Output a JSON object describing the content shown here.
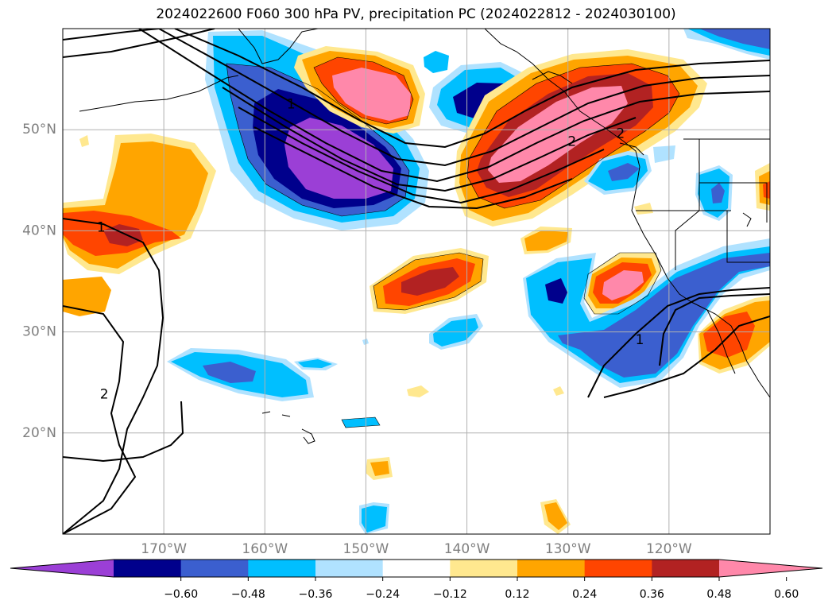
{
  "title": "2024022600 F060 300 hPa PV, precipitation PC (2024022812 - 2024030100)",
  "map": {
    "projection": "plate-carree",
    "lon_range": [
      -180,
      -110
    ],
    "lat_range": [
      10,
      60
    ],
    "gridlines": true,
    "lon_ticks": [
      {
        "lon": -170,
        "label": "170°W"
      },
      {
        "lon": -160,
        "label": "160°W"
      },
      {
        "lon": -150,
        "label": "150°W"
      },
      {
        "lon": -140,
        "label": "140°W"
      },
      {
        "lon": -130,
        "label": "130°W"
      },
      {
        "lon": -120,
        "label": "120°W"
      }
    ],
    "lat_ticks": [
      {
        "lat": 50,
        "label": "50°N"
      },
      {
        "lat": 40,
        "label": "40°N"
      },
      {
        "lat": 30,
        "label": "30°N"
      },
      {
        "lat": 20,
        "label": "20°N"
      }
    ],
    "tick_label_color": "#7f7f7f",
    "contour_labels": [
      {
        "text": "1",
        "lon": -176.2,
        "lat": 40.3
      },
      {
        "text": "2",
        "lon": -175.9,
        "lat": 23.8
      },
      {
        "text": "1",
        "lon": -157.4,
        "lat": 52.5
      },
      {
        "text": "2",
        "lon": -129.6,
        "lat": 48.8
      },
      {
        "text": "2",
        "lon": -124.8,
        "lat": 49.6
      },
      {
        "text": "1",
        "lon": -122.9,
        "lat": 29.2
      }
    ]
  },
  "colorbar": {
    "extend": "both",
    "levels": [
      -0.72,
      -0.6,
      -0.48,
      -0.36,
      -0.24,
      -0.12,
      0.12,
      0.24,
      0.36,
      0.48,
      0.6,
      0.72
    ],
    "colors": [
      "#9b3fd6",
      "#00008c",
      "#3b5fcf",
      "#00bfff",
      "#b0e2ff",
      "#ffffff",
      "#ffe88f",
      "#ffa500",
      "#ff4500",
      "#b22222",
      "#ff88aa"
    ],
    "under_color": "#9b3fd6",
    "over_color": "#ff88aa",
    "tick_labels": [
      "−0.60",
      "−0.48",
      "−0.36",
      "−0.24",
      "−0.12",
      "0.12",
      "0.24",
      "0.36",
      "0.48",
      "0.60"
    ]
  }
}
